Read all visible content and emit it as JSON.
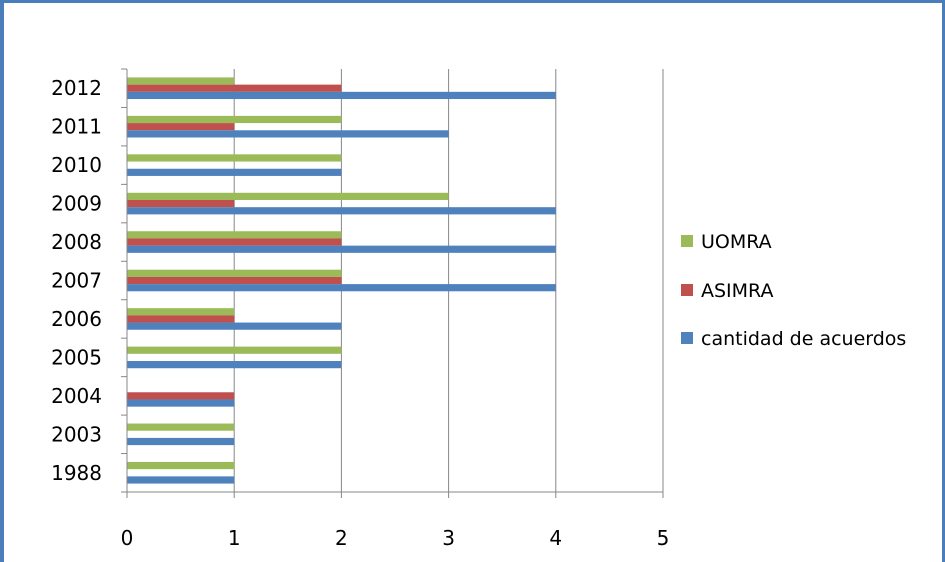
{
  "chart_data": {
    "type": "bar",
    "orientation": "horizontal",
    "categories": [
      "1988",
      "2003",
      "2004",
      "2005",
      "2006",
      "2007",
      "2008",
      "2009",
      "2010",
      "2011",
      "2012"
    ],
    "series": [
      {
        "name": "UOMRA",
        "color": "#9bbb59",
        "values": [
          1,
          1,
          0,
          2,
          1,
          2,
          2,
          3,
          2,
          2,
          1
        ]
      },
      {
        "name": "ASIMRA",
        "color": "#c0504d",
        "values": [
          0,
          0,
          1,
          0,
          1,
          2,
          2,
          1,
          0,
          1,
          2
        ]
      },
      {
        "name": "cantidad de acuerdos",
        "color": "#4f81bd",
        "values": [
          1,
          1,
          1,
          2,
          2,
          4,
          4,
          4,
          2,
          3,
          4
        ]
      }
    ],
    "xlim": [
      0,
      5
    ],
    "xticks": [
      "0",
      "1",
      "2",
      "3",
      "4",
      "5"
    ],
    "grid": true,
    "legend_position": "right"
  }
}
